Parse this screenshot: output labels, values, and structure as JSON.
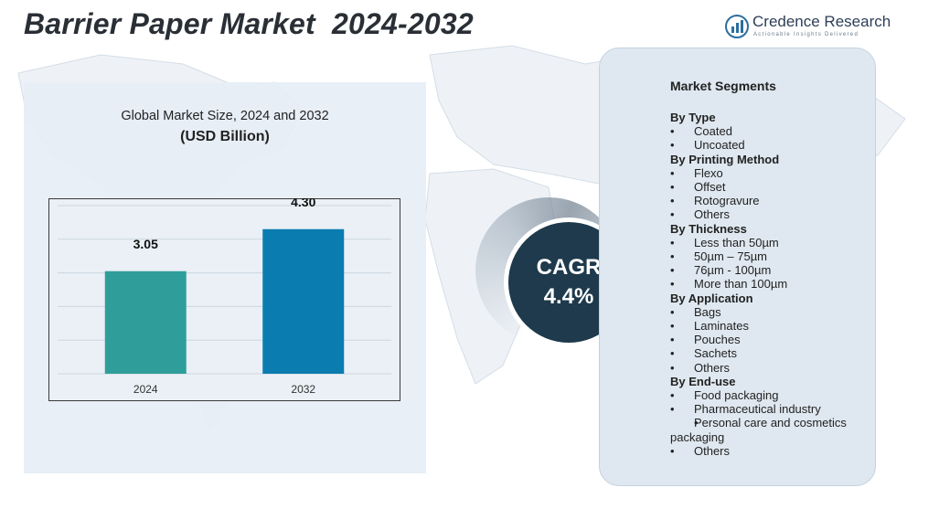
{
  "header": {
    "title": "Barrier Paper Market  2024-2032"
  },
  "brand": {
    "name": "Credence Research",
    "tagline": "Actionable Insights Delivered",
    "icon": "bar-chart-logo-icon"
  },
  "chart": {
    "title_line1": "Global Market Size, 2024 and 2032",
    "title_line2": "(USD Billion)"
  },
  "chart_data": {
    "type": "bar",
    "title": "Global Market Size, 2024 and 2032",
    "subtitle": "(USD Billion)",
    "categories": [
      "2024",
      "2032"
    ],
    "values": [
      3.05,
      4.3
    ],
    "value_labels": [
      "3.05",
      "4.30"
    ],
    "bar_colors": [
      "#2f9e9a",
      "#0a7cb0"
    ],
    "ylim": [
      0,
      5
    ],
    "grid": true,
    "xlabel": "",
    "ylabel": ""
  },
  "cagr": {
    "label": "CAGR",
    "value": "4.4%"
  },
  "segments": {
    "title": "Market Segments",
    "groups": [
      {
        "title": "By Type",
        "items": [
          "Coated",
          "Uncoated"
        ]
      },
      {
        "title": "By Printing Method",
        "items": [
          "Flexo",
          "Offset",
          "Rotogravure",
          "Others"
        ]
      },
      {
        "title": "By Thickness",
        "items": [
          "Less than 50µm",
          "50µm – 75µm",
          "76µm - 100µm",
          "More than 100µm"
        ]
      },
      {
        "title": "By Application",
        "items": [
          "Bags",
          "Laminates",
          "Pouches",
          "Sachets",
          "Others"
        ]
      },
      {
        "title": "By End-use",
        "items": [
          "Food packaging",
          "Pharmaceutical industry",
          "Personal care and cosmetics packaging",
          "Others"
        ]
      }
    ]
  },
  "colors": {
    "title": "#2a2f36",
    "cagr_circle": "#1e3a4c",
    "panel": "#e6eef5",
    "segment_panel": "#dfe8f0"
  }
}
